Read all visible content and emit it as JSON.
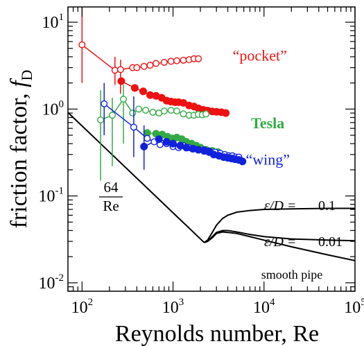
{
  "chart_data": {
    "type": "scatter",
    "title": "",
    "xlabel": "Reynolds number, Re",
    "ylabel_main": "friction factor, ",
    "ylabel_sym": "f",
    "ylabel_sub": "D",
    "xscale": "log",
    "yscale": "log",
    "xlim": [
      70,
      100000
    ],
    "ylim": [
      0.008,
      15
    ],
    "grid": false,
    "legend": "none",
    "x_ticks": [
      {
        "value": 100,
        "base": "10",
        "exp": "2"
      },
      {
        "value": 1000,
        "base": "10",
        "exp": "3"
      },
      {
        "value": 10000,
        "base": "10",
        "exp": "4"
      },
      {
        "value": 100000,
        "base": "10",
        "exp": "5"
      }
    ],
    "y_ticks": [
      {
        "value": 0.01,
        "base": "10",
        "exp": "-2"
      },
      {
        "value": 0.1,
        "base": "10",
        "exp": "-1"
      },
      {
        "value": 1,
        "base": "10",
        "exp": "0"
      },
      {
        "value": 10,
        "base": "10",
        "exp": "1"
      }
    ],
    "annotations": {
      "laminar_num": "64",
      "laminar_den": "Re",
      "eps_label": "ε/D =",
      "eps_01": "0.1",
      "eps_001": "0.01",
      "smooth_pipe": "smooth pipe"
    },
    "series": [
      {
        "name": "“pocket”",
        "color": "#ee1111",
        "label_data": [
          9000,
          3.6
        ],
        "filled": {
          "x": [
            270,
            380,
            470,
            560,
            650,
            750,
            850,
            950,
            1050,
            1150,
            1300,
            1500,
            1700,
            1900,
            2150,
            2400,
            2700,
            3000,
            3400,
            3800
          ],
          "y": [
            2.1,
            1.75,
            1.6,
            1.45,
            1.42,
            1.35,
            1.25,
            1.22,
            1.2,
            1.2,
            1.18,
            1.1,
            1.07,
            1.02,
            0.98,
            0.96,
            0.94,
            0.93,
            0.92,
            0.9
          ]
        },
        "open": {
          "x": [
            100,
            230,
            265,
            360,
            400,
            480,
            560,
            650,
            800,
            950,
            1100,
            1300,
            1500,
            1700,
            1900
          ],
          "y": [
            5.5,
            2.8,
            2.85,
            3.0,
            3.0,
            3.1,
            3.2,
            3.35,
            3.45,
            3.55,
            3.6,
            3.65,
            3.7,
            3.8,
            3.8
          ]
        },
        "errors": [
          [
            100,
            2.0,
            18.0
          ],
          [
            230,
            1.9,
            4.0
          ],
          [
            265,
            1.5,
            3.7
          ]
        ]
      },
      {
        "name": "Tesla",
        "color": "#33aa44",
        "label_data": [
          11000,
          0.6
        ],
        "filled": {
          "x": [
            520,
            650,
            760,
            870,
            980,
            1100,
            1250,
            1400,
            1600,
            1800,
            2000,
            2300,
            2700,
            3100
          ],
          "y": [
            0.53,
            0.52,
            0.51,
            0.48,
            0.46,
            0.47,
            0.45,
            0.42,
            0.4,
            0.38,
            0.36,
            0.34,
            0.33,
            0.32
          ]
        },
        "open": {
          "x": [
            160,
            215,
            285,
            360,
            420,
            500,
            600,
            700,
            800,
            950,
            1100,
            1300,
            1500,
            1700,
            1900,
            2100,
            2300
          ],
          "y": [
            0.75,
            0.85,
            1.3,
            0.9,
            1.0,
            0.97,
            0.92,
            0.9,
            0.95,
            0.97,
            0.95,
            0.88,
            0.85,
            0.85,
            0.87,
            0.86,
            0.88
          ]
        },
        "errors": [
          [
            160,
            0.15,
            1.65
          ],
          [
            215,
            0.22,
            1.35
          ],
          [
            285,
            0.4,
            1.9
          ]
        ]
      },
      {
        "name": "“wing”",
        "color": "#1122dd",
        "label_data": [
          11000,
          0.23
        ],
        "filled": {
          "x": [
            480,
            700,
            850,
            1000,
            1200,
            1400,
            1650,
            1900,
            2200,
            2500,
            2800,
            3200,
            3600,
            4000,
            4400,
            4800,
            5300,
            5800
          ],
          "y": [
            0.37,
            0.45,
            0.42,
            0.4,
            0.38,
            0.36,
            0.35,
            0.34,
            0.33,
            0.32,
            0.3,
            0.29,
            0.28,
            0.275,
            0.27,
            0.265,
            0.26,
            0.25
          ]
        },
        "open": {
          "x": [
            175,
            370,
            520,
            620,
            720,
            850,
            1000,
            1150,
            1300,
            1500,
            1700,
            1900,
            2200,
            2500,
            2900,
            3300,
            3700,
            4100,
            4500,
            4900,
            5300
          ],
          "y": [
            1.15,
            0.62,
            0.46,
            0.42,
            0.39,
            0.4,
            0.37,
            0.36,
            0.38,
            0.36,
            0.35,
            0.34,
            0.34,
            0.33,
            0.32,
            0.31,
            0.3,
            0.29,
            0.29,
            0.28,
            0.28
          ]
        },
        "errors": [
          [
            175,
            0.5,
            2.0
          ],
          [
            370,
            0.28,
            1.4
          ],
          [
            480,
            0.2,
            0.65
          ]
        ]
      }
    ],
    "curves": [
      {
        "name": "64/Re",
        "x": [
          70,
          100,
          200,
          500,
          1000,
          1500,
          2000,
          2200
        ],
        "y": [
          0.914,
          0.64,
          0.32,
          0.128,
          0.064,
          0.0427,
          0.032,
          0.0291
        ]
      },
      {
        "name": "ε/D = 0.1",
        "x": [
          2200,
          2400,
          2700,
          3000,
          3500,
          4000,
          5000,
          7000,
          10000,
          20000,
          50000,
          100000
        ],
        "y": [
          0.0291,
          0.031,
          0.038,
          0.046,
          0.055,
          0.06,
          0.065,
          0.068,
          0.07,
          0.071,
          0.072,
          0.072
        ]
      },
      {
        "name": "ε/D = 0.01",
        "x": [
          2200,
          2400,
          2700,
          3000,
          3500,
          4000,
          5000,
          7000,
          10000,
          20000,
          50000,
          100000
        ],
        "y": [
          0.0291,
          0.03,
          0.034,
          0.038,
          0.04,
          0.04,
          0.0385,
          0.036,
          0.034,
          0.032,
          0.031,
          0.0305
        ]
      },
      {
        "name": "smooth pipe",
        "x": [
          2200,
          2400,
          2700,
          3000,
          3500,
          4000,
          5000,
          7000,
          10000,
          20000,
          50000,
          100000
        ],
        "y": [
          0.0291,
          0.03,
          0.033,
          0.037,
          0.0385,
          0.038,
          0.037,
          0.034,
          0.031,
          0.026,
          0.021,
          0.018
        ]
      }
    ]
  }
}
